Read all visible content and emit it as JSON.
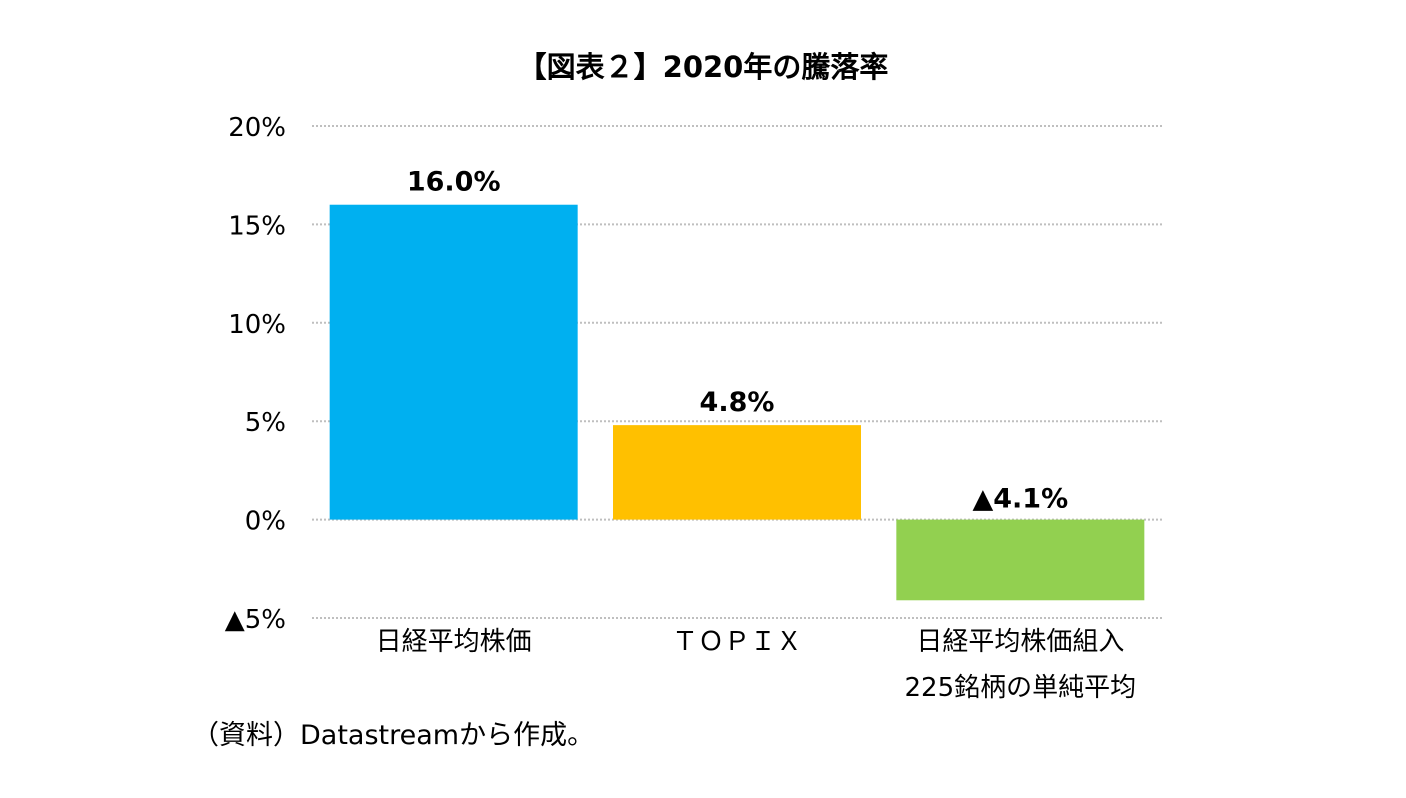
{
  "chart_data": {
    "type": "bar",
    "title": "【図表２】2020年の騰落率",
    "categories": [
      [
        "日経平均株価"
      ],
      [
        "ＴＯＰＩＸ"
      ],
      [
        "日経平均株価組入",
        "225銘柄の単純平均"
      ]
    ],
    "values": [
      16.0,
      4.8,
      -4.1
    ],
    "data_labels": [
      "16.0%",
      "4.8%",
      "▲4.1%"
    ],
    "colors": [
      "#00B0F0",
      "#FFC000",
      "#92D050"
    ],
    "ylim": [
      -5,
      20
    ],
    "yticks": [
      20,
      15,
      10,
      5,
      0,
      -5
    ],
    "ytick_labels": [
      "20%",
      "15%",
      "10%",
      "5%",
      "0%",
      "▲5%"
    ],
    "grid": true,
    "xlabel": "",
    "ylabel": ""
  },
  "source_note": "（資料）Datastreamから作成。"
}
